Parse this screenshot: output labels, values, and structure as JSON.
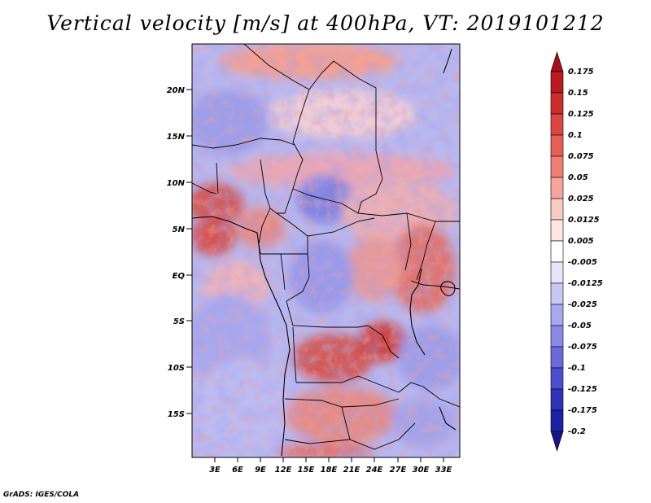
{
  "title": "Vertical velocity [m/s] at 400hPa, VT: 2019101212",
  "credit": "GrADS: IGES/COLA",
  "map": {
    "lat_labels": [
      "20N",
      "15N",
      "10N",
      "5N",
      "EQ",
      "5S",
      "10S",
      "15S"
    ],
    "lon_labels": [
      "3E",
      "6E",
      "9E",
      "12E",
      "15E",
      "18E",
      "21E",
      "24E",
      "27E",
      "30E",
      "33E"
    ],
    "field": "vertical velocity, blue-white-red shading"
  },
  "colorbar": {
    "labels": [
      "0.175",
      "0.15",
      "0.125",
      "0.1",
      "0.075",
      "0.05",
      "0.025",
      "0.0125",
      "0.005",
      "-0.005",
      "-0.0125",
      "-0.025",
      "-0.05",
      "-0.075",
      "-0.1",
      "-0.125",
      "-0.175",
      "-0.2"
    ],
    "colors": [
      "#a50f15",
      "#bb1a1e",
      "#cd2e2b",
      "#dd4640",
      "#e65f55",
      "#ef7f74",
      "#f6a59b",
      "#fbcac2",
      "#fee6e2",
      "#ffffff",
      "#e6e6fb",
      "#c8c8f5",
      "#a8a8f0",
      "#8a8ae6",
      "#6a6ade",
      "#4d4dcf",
      "#3030bb",
      "#2020a6",
      "#15158a"
    ]
  }
}
